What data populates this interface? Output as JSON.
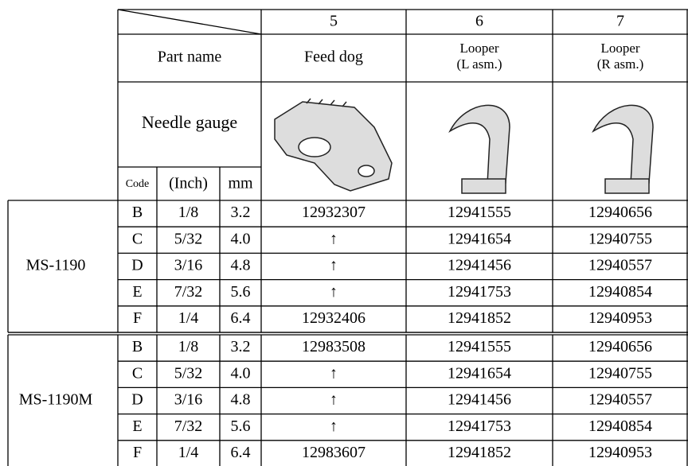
{
  "table": {
    "columns": [
      "5",
      "6",
      "7"
    ],
    "part_name_label": "Part name",
    "part_names": [
      [
        "Feed dog"
      ],
      [
        "Looper",
        "(L asm.)"
      ],
      [
        "Looper",
        "(R asm.)"
      ]
    ],
    "needle_gauge_label": "Needle gauge",
    "sub_headers": [
      "Code",
      "(Inch)",
      "mm"
    ],
    "groups": [
      {
        "model": "MS-1190",
        "rows": [
          [
            "B",
            "1/8",
            "3.2",
            "12932307",
            "12941555",
            "12940656"
          ],
          [
            "C",
            "5/32",
            "4.0",
            "↑",
            "12941654",
            "12940755"
          ],
          [
            "D",
            "3/16",
            "4.8",
            "↑",
            "12941456",
            "12940557"
          ],
          [
            "E",
            "7/32",
            "5.6",
            "↑",
            "12941753",
            "12940854"
          ],
          [
            "F",
            "1/4",
            "6.4",
            "12932406",
            "12941852",
            "12940953"
          ]
        ]
      },
      {
        "model": "MS-1190M",
        "rows": [
          [
            "B",
            "1/8",
            "3.2",
            "12983508",
            "12941555",
            "12940656"
          ],
          [
            "C",
            "5/32",
            "4.0",
            "↑",
            "12941654",
            "12940755"
          ],
          [
            "D",
            "3/16",
            "4.8",
            "↑",
            "12941456",
            "12940557"
          ],
          [
            "E",
            "7/32",
            "5.6",
            "↑",
            "12941753",
            "12940854"
          ],
          [
            "F",
            "1/4",
            "6.4",
            "12983607",
            "12941852",
            "12940953"
          ]
        ]
      }
    ]
  }
}
